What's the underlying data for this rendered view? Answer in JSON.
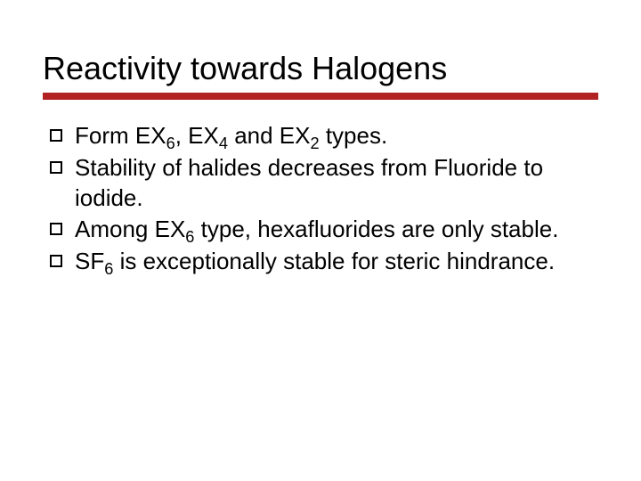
{
  "slide": {
    "title": "Reactivity towards Halogens",
    "title_color": "#000000",
    "title_fontsize": 36,
    "underline_color": "#b22222",
    "underline_height": 8,
    "background_color": "#ffffff",
    "bullet_marker": {
      "type": "hollow-square",
      "border_color": "#000000",
      "size": 14
    },
    "body_fontsize": 26,
    "body_color": "#000000",
    "bullets": [
      {
        "segments": [
          {
            "t": "Form EX"
          },
          {
            "t": "6",
            "sub": true
          },
          {
            "t": ", EX"
          },
          {
            "t": "4",
            "sub": true
          },
          {
            "t": " and EX"
          },
          {
            "t": "2",
            "sub": true
          },
          {
            "t": " types."
          }
        ]
      },
      {
        "segments": [
          {
            "t": "Stability of halides decreases from Fluoride to iodide."
          }
        ]
      },
      {
        "segments": [
          {
            "t": "Among EX"
          },
          {
            "t": "6",
            "sub": true
          },
          {
            "t": " type, hexafluorides are only stable."
          }
        ]
      },
      {
        "segments": [
          {
            "t": "SF"
          },
          {
            "t": "6",
            "sub": true
          },
          {
            "t": " is exceptionally stable for steric hindrance."
          }
        ]
      }
    ]
  }
}
